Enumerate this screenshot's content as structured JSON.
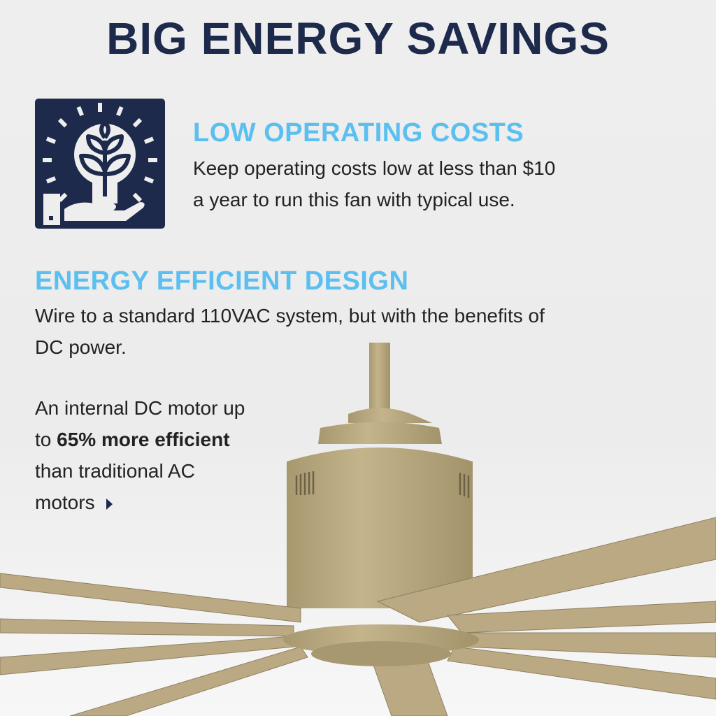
{
  "title": "BIG ENERGY SAVINGS",
  "section1": {
    "icon": "lightbulb-plant-hand-icon",
    "heading": "LOW OPERATING COSTS",
    "line1": "Keep operating costs low at less than $10",
    "line2": "a year to run this fan with typical use."
  },
  "section2": {
    "heading": "ENERGY EFFICIENT DESIGN",
    "line1": "Wire to a standard 110VAC system, but with the benefits of",
    "line2": "DC power."
  },
  "motor_note": {
    "line1": "An internal DC motor up",
    "line2_pre": "to ",
    "line2_bold": "65% more efficient",
    "line3": "than traditional AC",
    "line4": "motors",
    "arrow_icon": "play-arrow-icon"
  },
  "colors": {
    "navy": "#1d2a4b",
    "accent": "#5bbff0",
    "fan_finish": "#b6a67f"
  }
}
